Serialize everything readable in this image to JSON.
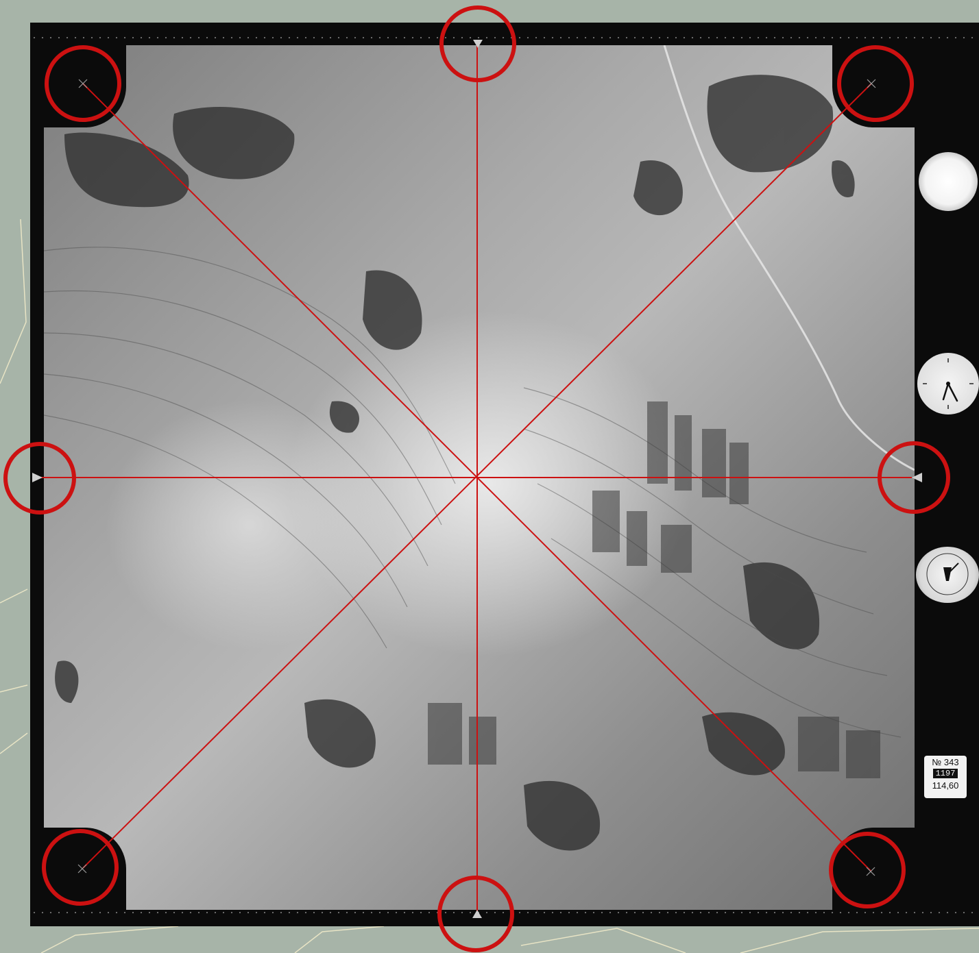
{
  "data_plate": {
    "frame_no": "№ 343",
    "serial": "1197",
    "focal_length": "114,60"
  },
  "overlay": {
    "line_color": "#cc1111",
    "circle_color": "#cc1111"
  },
  "icons": [
    "fiducial-mark-icon",
    "altimeter-icon",
    "clock-icon",
    "level-bubble-icon"
  ]
}
